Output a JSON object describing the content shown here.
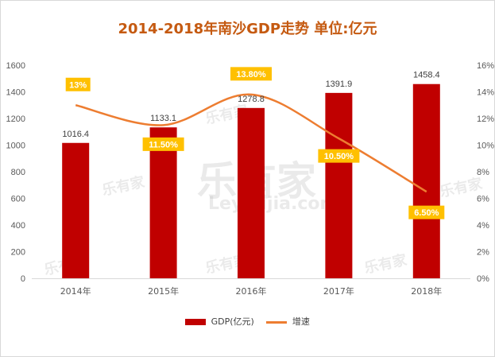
{
  "chart_data": {
    "type": "bar+line",
    "title": "2014-2018年南沙GDP走势 单位:亿元",
    "categories": [
      "2014年",
      "2015年",
      "2016年",
      "2017年",
      "2018年"
    ],
    "series": [
      {
        "name": "GDP(亿元)",
        "type": "bar",
        "axis": "left",
        "values": [
          1016.4,
          1133.1,
          1278.8,
          1391.9,
          1458.4
        ],
        "labels": [
          "1016.4",
          "1133.1",
          "1278.8",
          "1391.9",
          "1458.4"
        ],
        "color": "#c00000"
      },
      {
        "name": "增速",
        "type": "line",
        "axis": "right",
        "values": [
          13,
          11.5,
          13.8,
          10.5,
          6.5
        ],
        "labels": [
          "13%",
          "11.50%",
          "13.80%",
          "10.50%",
          "6.50%"
        ],
        "color": "#ed7d31",
        "label_bg": "#ffc000"
      }
    ],
    "ylim_left": [
      0,
      1600
    ],
    "yticks_left": [
      "0",
      "200",
      "400",
      "600",
      "800",
      "1000",
      "1200",
      "1400",
      "1600"
    ],
    "ylim_right": [
      0,
      16
    ],
    "yticks_right": [
      "0%",
      "2%",
      "4%",
      "6%",
      "8%",
      "10%",
      "12%",
      "14%",
      "16%"
    ],
    "grid": false,
    "legend": "bottom"
  },
  "watermark": {
    "brand": "乐有家",
    "url": "Leyoujia.com"
  },
  "colors": {
    "title": "#c55a11",
    "bar": "#c00000",
    "line": "#ed7d31",
    "label_bg": "#ffc000"
  }
}
